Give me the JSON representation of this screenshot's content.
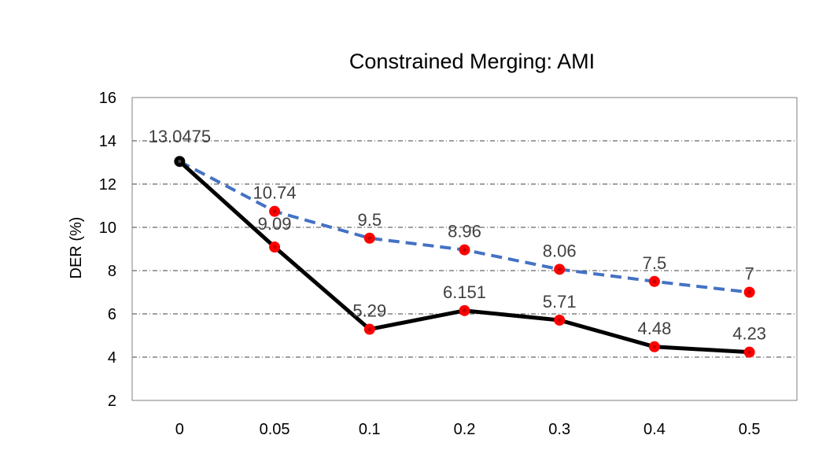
{
  "chart_data": {
    "type": "line",
    "title": "Constrained Merging: AMI",
    "ylabel": "DER (%)",
    "xlabel": "",
    "categories": [
      "0",
      "0.05",
      "0.1",
      "0.2",
      "0.3",
      "0.4",
      "0.5"
    ],
    "ylim": [
      2,
      16
    ],
    "yticks": [
      2,
      4,
      6,
      8,
      10,
      12,
      14,
      16
    ],
    "grid": "horizontal dash-dot",
    "legend": "none",
    "series": [
      {
        "values": [
          13.0475,
          9.09,
          5.29,
          6.151,
          5.71,
          4.48,
          4.23
        ],
        "labels": [
          "13.0475",
          "9.09",
          "5.29",
          "6.151",
          "5.71",
          "4.48",
          "4.23"
        ],
        "line_color": "#000000",
        "line_style": "solid",
        "marker_color": "#ff0000",
        "first_marker_color": "#000000"
      },
      {
        "values": [
          13.0475,
          10.74,
          9.5,
          8.96,
          8.06,
          7.5,
          7
        ],
        "labels": [
          "",
          "10.74",
          "9.5",
          "8.96",
          "8.06",
          "7.5",
          "7"
        ],
        "line_color": "#4472c4",
        "line_style": "dashed",
        "marker_color": "#ff0000"
      }
    ]
  }
}
